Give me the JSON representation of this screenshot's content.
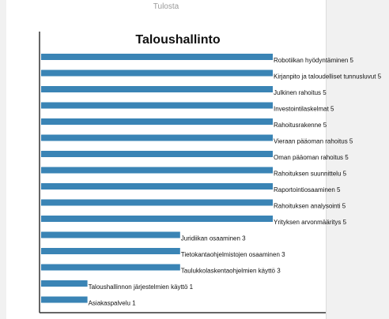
{
  "tab_label": "Tulosta",
  "colors": {
    "bar": "#3a84b5",
    "axis": "#333333"
  },
  "chart_data": {
    "type": "bar",
    "orientation": "horizontal",
    "title": "Taloushallinto",
    "xlim": [
      0,
      5
    ],
    "grid": false,
    "legend": "none",
    "categories": [
      "Robotiikan hyödyntäminen",
      "Kirjanpito ja taloudelliset tunnusluvut",
      "Julkinen rahoitus",
      "Investointilaskelmat",
      "Rahoitusrakenne",
      "Vieraan pääoman rahoitus",
      "Oman pääoman rahoitus",
      "Rahoituksen suunnittelu",
      "Raportointiosaaminen",
      "Rahoituksen analysointi",
      "Yrityksen arvonmääritys",
      "Juridiikan osaaminen",
      "Tietokantaohjelmistojen osaaminen",
      "Taulukkolaskentaohjelmien käyttö",
      "Taloushallinnon järjestelmien käyttö",
      "Asiakaspalvelu"
    ],
    "values": [
      5,
      5,
      5,
      5,
      5,
      5,
      5,
      5,
      5,
      5,
      5,
      3,
      3,
      3,
      1,
      1
    ]
  }
}
